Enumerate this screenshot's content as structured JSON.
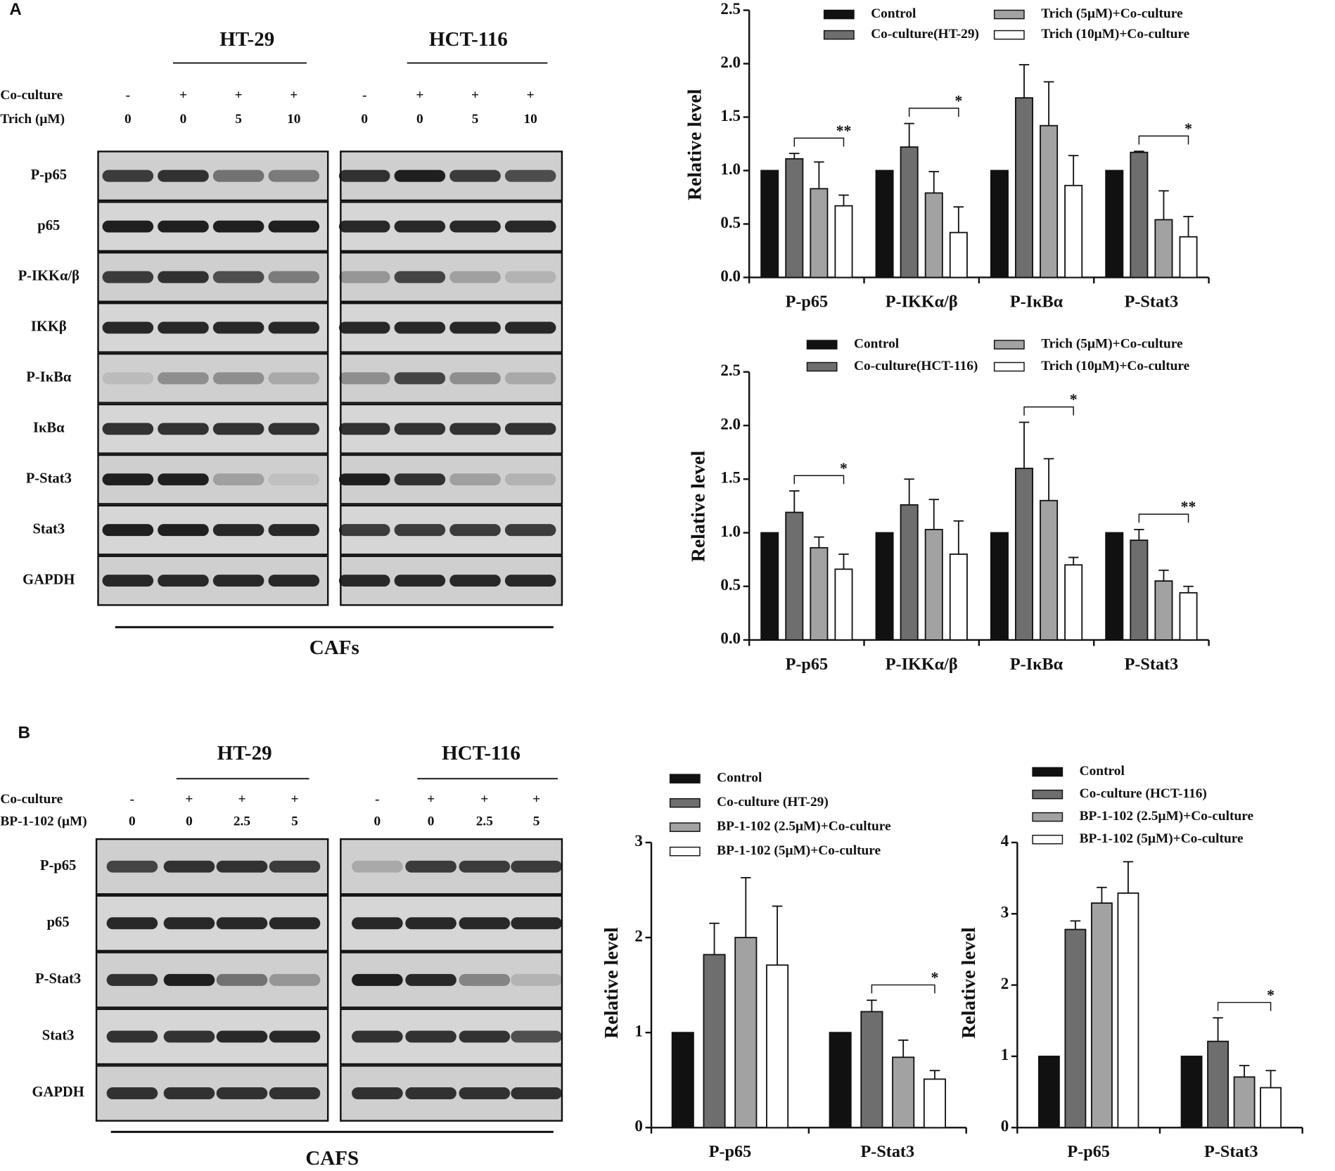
{
  "blots": [
    {
      "panel": "A",
      "groups": [
        "HT-29",
        "HCT-116"
      ],
      "conditions": [
        {
          "label": "Co-culture",
          "values": [
            "-",
            "+",
            "+",
            "+",
            "-",
            "+",
            "+",
            "+"
          ]
        },
        {
          "label": "Trich (μM)",
          "values": [
            "0",
            "0",
            "5",
            "10",
            "0",
            "0",
            "5",
            "10"
          ]
        }
      ],
      "proteins": [
        "P-p65",
        "p65",
        "P-IKKα/β",
        "IKKβ",
        "P-IκBα",
        "IκBα",
        "P-Stat3",
        "Stat3",
        "GAPDH"
      ],
      "footer": "CAFs"
    },
    {
      "panel": "B",
      "groups": [
        "HT-29",
        "HCT-116"
      ],
      "conditions": [
        {
          "label": "Co-culture",
          "values": [
            "-",
            "+",
            "+",
            "+",
            "-",
            "+",
            "+",
            "+"
          ]
        },
        {
          "label": "BP-1-102 (μM)",
          "values": [
            "0",
            "0",
            "2.5",
            "5",
            "0",
            "0",
            "2.5",
            "5"
          ]
        }
      ],
      "proteins": [
        "P-p65",
        "p65",
        "P-Stat3",
        "Stat3",
        "GAPDH"
      ],
      "footer": "CAFS"
    }
  ],
  "chart_data": [
    {
      "type": "bar",
      "ylabel": "Relative level",
      "categories": [
        "P-p65",
        "P-IKKα/β",
        "P-IκBα",
        "P-Stat3"
      ],
      "ylim": [
        0,
        2.5
      ],
      "yticks": [
        {
          "value": 0,
          "label": "0.0"
        },
        {
          "value": 0.5,
          "label": "0.5"
        },
        {
          "value": 1,
          "label": "1.0"
        },
        {
          "value": 1.5,
          "label": "1.5"
        },
        {
          "value": 2,
          "label": "2.0"
        },
        {
          "value": 2.5,
          "label": "2.5"
        }
      ],
      "series": [
        {
          "name": "Control",
          "color": "#111111",
          "values": [
            1,
            1,
            1,
            1
          ],
          "errors": [
            0,
            0,
            0,
            0
          ]
        },
        {
          "name": "Co-culture(HT-29)",
          "color": "#6e6e6e",
          "values": [
            1.11,
            1.22,
            1.68,
            1.17
          ],
          "errors": [
            0.05,
            0.22,
            0.31,
            0.01
          ]
        },
        {
          "name": "Trich (5μM)+Co-culture",
          "color": "#a2a2a2",
          "values": [
            0.83,
            0.79,
            1.42,
            0.54
          ],
          "errors": [
            0.25,
            0.2,
            0.41,
            0.27
          ]
        },
        {
          "name": "Trich (10μM)+Co-culture",
          "color": "#ffffff",
          "values": [
            0.67,
            0.42,
            0.86,
            0.38
          ],
          "errors": [
            0.1,
            0.24,
            0.28,
            0.19
          ]
        }
      ],
      "annotations": [
        {
          "text": "**",
          "category": "P-p65"
        },
        {
          "text": "*",
          "category": "P-IKKα/β"
        },
        {
          "text": "*",
          "category": "P-Stat3"
        }
      ]
    },
    {
      "type": "bar",
      "ylabel": "Relative level",
      "categories": [
        "P-p65",
        "P-IKKα/β",
        "P-IκBα",
        "P-Stat3"
      ],
      "ylim": [
        0,
        2.5
      ],
      "yticks": [
        {
          "value": 0,
          "label": "0.0"
        },
        {
          "value": 0.5,
          "label": "0.5"
        },
        {
          "value": 1,
          "label": "1.0"
        },
        {
          "value": 1.5,
          "label": "1.5"
        },
        {
          "value": 2,
          "label": "2.0"
        },
        {
          "value": 2.5,
          "label": "2.5"
        }
      ],
      "series": [
        {
          "name": "Control",
          "color": "#111111",
          "values": [
            1,
            1,
            1,
            1
          ],
          "errors": [
            0,
            0,
            0,
            0
          ]
        },
        {
          "name": "Co-culture(HCT-116)",
          "color": "#6e6e6e",
          "values": [
            1.19,
            1.26,
            1.6,
            0.93
          ],
          "errors": [
            0.2,
            0.24,
            0.43,
            0.1
          ]
        },
        {
          "name": "Trich (5μM)+Co-culture",
          "color": "#a2a2a2",
          "values": [
            0.86,
            1.03,
            1.3,
            0.55
          ],
          "errors": [
            0.1,
            0.28,
            0.39,
            0.1
          ]
        },
        {
          "name": "Trich (10μM)+Co-culture",
          "color": "#ffffff",
          "values": [
            0.66,
            0.8,
            0.7,
            0.44
          ],
          "errors": [
            0.14,
            0.31,
            0.07,
            0.06
          ]
        }
      ],
      "annotations": [
        {
          "text": "*",
          "category": "P-p65"
        },
        {
          "text": "*",
          "category": "P-IκBα"
        },
        {
          "text": "**",
          "category": "P-Stat3"
        }
      ]
    },
    {
      "type": "bar",
      "ylabel": "Relative level",
      "categories": [
        "P-p65",
        "P-Stat3"
      ],
      "ylim": [
        0,
        3
      ],
      "yticks": [
        0,
        1,
        2,
        3
      ],
      "series": [
        {
          "name": "Control",
          "color": "#111111",
          "values": [
            1,
            1
          ],
          "errors": [
            0,
            0
          ]
        },
        {
          "name": "Co-culture (HT-29)",
          "color": "#6e6e6e",
          "values": [
            1.82,
            1.22
          ],
          "errors": [
            0.33,
            0.12
          ]
        },
        {
          "name": "BP-1-102 (2.5μM)+Co-culture",
          "color": "#a2a2a2",
          "values": [
            2.0,
            0.74
          ],
          "errors": [
            0.63,
            0.18
          ]
        },
        {
          "name": "BP-1-102 (5μM)+Co-culture",
          "color": "#ffffff",
          "values": [
            1.71,
            0.51
          ],
          "errors": [
            0.62,
            0.09
          ]
        }
      ],
      "annotations": [
        {
          "text": "*",
          "category": "P-Stat3"
        }
      ]
    },
    {
      "type": "bar",
      "ylabel": "Relative level",
      "categories": [
        "P-p65",
        "P-Stat3"
      ],
      "ylim": [
        0,
        4
      ],
      "yticks": [
        0,
        1,
        2,
        3,
        4
      ],
      "series": [
        {
          "name": "Control",
          "color": "#111111",
          "values": [
            1,
            1
          ],
          "errors": [
            0,
            0
          ]
        },
        {
          "name": "Co-culture (HCT-116)",
          "color": "#6e6e6e",
          "values": [
            2.78,
            1.21
          ],
          "errors": [
            0.12,
            0.33
          ]
        },
        {
          "name": "BP-1-102 (2.5μM)+Co-culture",
          "color": "#a2a2a2",
          "values": [
            3.15,
            0.71
          ],
          "errors": [
            0.22,
            0.16
          ]
        },
        {
          "name": "BP-1-102 (5μM)+Co-culture",
          "color": "#ffffff",
          "values": [
            3.29,
            0.56
          ],
          "errors": [
            0.44,
            0.24
          ]
        }
      ],
      "annotations": [
        {
          "text": "*",
          "category": "P-Stat3"
        }
      ]
    }
  ]
}
